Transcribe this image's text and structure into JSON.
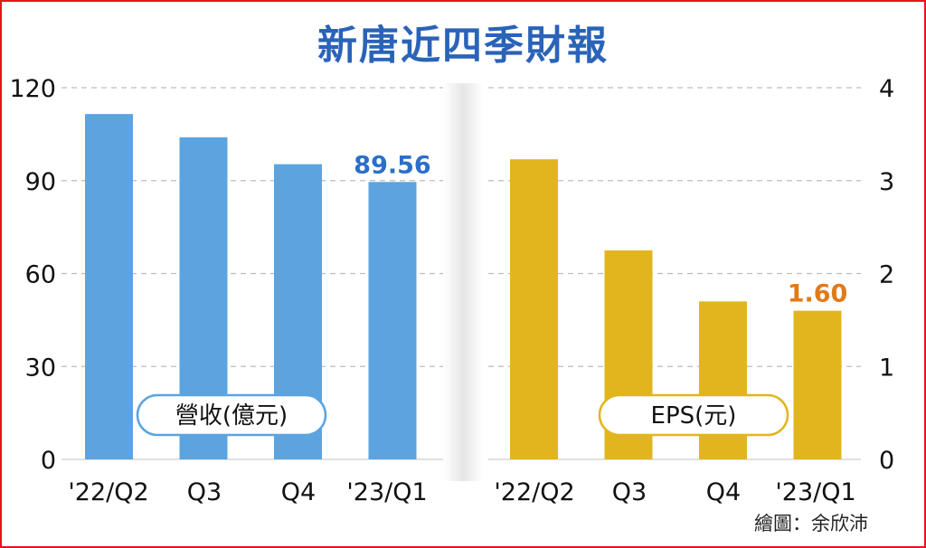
{
  "title": "新唐近四季財報",
  "credit": "繪圖：余欣沛",
  "chart_data": [
    {
      "type": "bar",
      "categories": [
        "'22/Q2",
        "Q3",
        "Q4",
        "'23/Q1"
      ],
      "series": [
        {
          "name": "營收(億元)",
          "values": [
            111.5,
            104,
            95.3,
            89.56
          ]
        }
      ],
      "ylim": [
        0,
        120
      ],
      "yticks": [
        "0",
        "30",
        "60",
        "90",
        "120"
      ],
      "grid": true,
      "annotation": {
        "index": 3,
        "text": "89.56"
      },
      "bar_color": "#5ba4e0",
      "annotation_color": "#2a6fc9",
      "legend_border_color": "#5ba4e0"
    },
    {
      "type": "bar",
      "categories": [
        "'22/Q2",
        "Q3",
        "Q4",
        "'23/Q1"
      ],
      "series": [
        {
          "name": "EPS(元)",
          "values": [
            3.23,
            2.25,
            1.7,
            1.6
          ]
        }
      ],
      "ylim": [
        0,
        4
      ],
      "yticks": [
        "0",
        "1",
        "2",
        "3",
        "4"
      ],
      "grid": true,
      "annotation": {
        "index": 3,
        "text": "1.60"
      },
      "bar_color": "#e2b51f",
      "annotation_color": "#e07a1a",
      "legend_border_color": "#e2b51f"
    }
  ]
}
